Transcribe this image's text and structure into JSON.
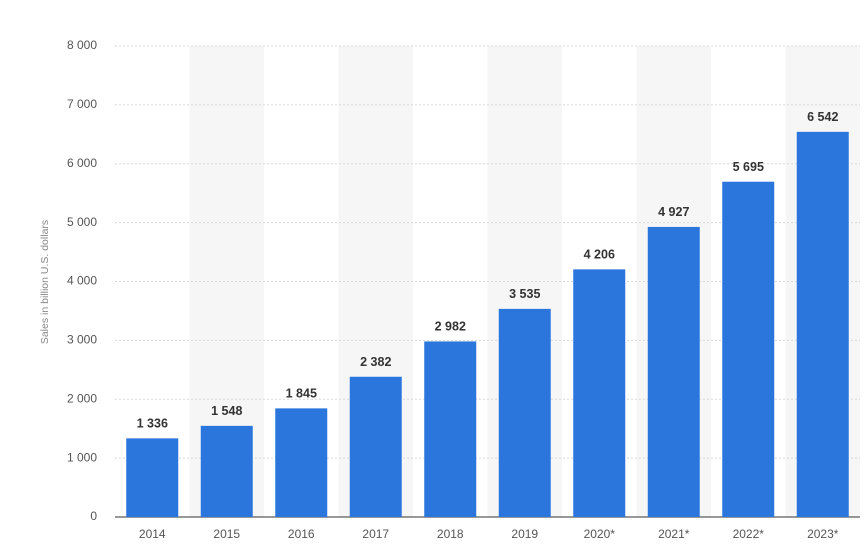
{
  "chart_data": {
    "type": "bar",
    "y_label": "Sales in billion U.S. dollars",
    "categories": [
      "2014",
      "2015",
      "2016",
      "2017",
      "2018",
      "2019",
      "2020*",
      "2021*",
      "2022*",
      "2023*"
    ],
    "values": [
      1336,
      1548,
      1845,
      2382,
      2982,
      3535,
      4206,
      4927,
      5695,
      6542
    ],
    "value_labels": [
      "1 336",
      "1 548",
      "1 845",
      "2 382",
      "2 982",
      "3 535",
      "4 206",
      "4 927",
      "5 695",
      "6 542"
    ],
    "color": "#2a76dd",
    "ylim": [
      0,
      8000
    ],
    "yticks": [
      0,
      {
        "value": 1000,
        "label": "1 000"
      },
      {
        "value": 2000,
        "label": "2 000"
      },
      {
        "value": 3000,
        "label": "3 000"
      },
      {
        "value": 4000,
        "label": "4 000"
      },
      {
        "value": 5000,
        "label": "5 000"
      },
      {
        "value": 6000,
        "label": "6 000"
      },
      {
        "value": 7000,
        "label": "7 000"
      },
      {
        "value": 8000,
        "label": "8 000"
      }
    ],
    "grid": true
  }
}
